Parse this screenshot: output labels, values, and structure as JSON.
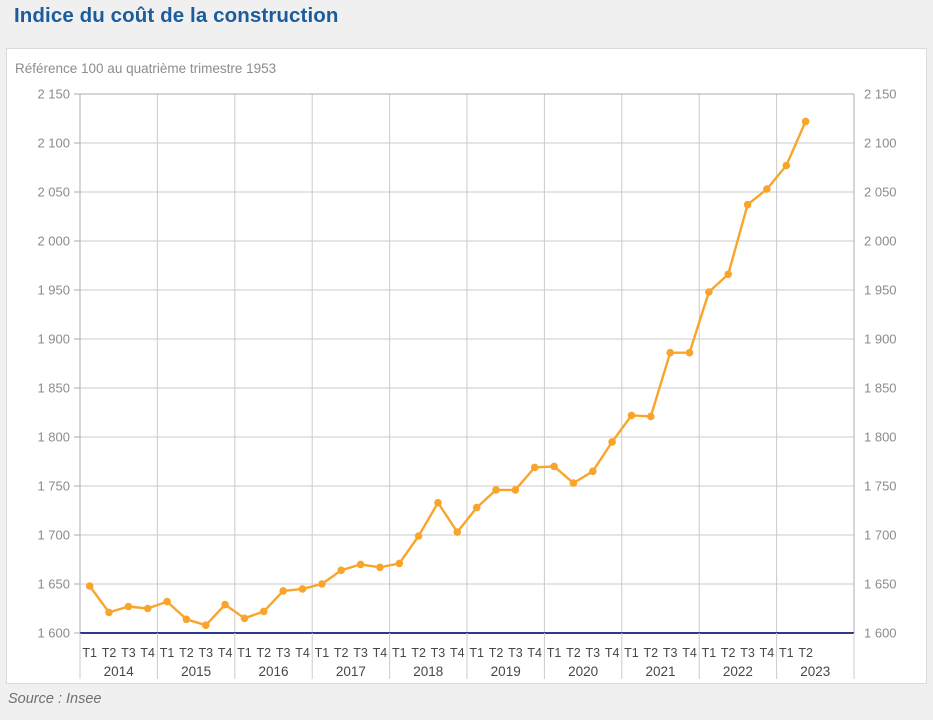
{
  "page": {
    "title": "Indice du coût de la construction",
    "source": "Source : Insee"
  },
  "chart_data": {
    "type": "line",
    "title": "Indice du coût de la construction",
    "subtitle": "Référence 100 au quatrième trimestre 1953",
    "xlabel": "",
    "ylabel": "",
    "ylim": [
      1600,
      2150
    ],
    "ytick_step": 50,
    "y_tick_labels": [
      "1 600",
      "1 650",
      "1 700",
      "1 750",
      "1 800",
      "1 850",
      "1 900",
      "1 950",
      "2 000",
      "2 050",
      "2 100",
      "2 150"
    ],
    "y_axis_sides": [
      "left",
      "right"
    ],
    "grid": true,
    "legend_position": "none",
    "series_name": "Indice du coût de la construction",
    "year_groups": [
      {
        "year": "2014",
        "quarters": [
          "T1",
          "T2",
          "T3",
          "T4"
        ],
        "values": [
          1648,
          1621,
          1627,
          1625
        ]
      },
      {
        "year": "2015",
        "quarters": [
          "T1",
          "T2",
          "T3",
          "T4"
        ],
        "values": [
          1632,
          1614,
          1608,
          1629
        ]
      },
      {
        "year": "2016",
        "quarters": [
          "T1",
          "T2",
          "T3",
          "T4"
        ],
        "values": [
          1615,
          1622,
          1643,
          1645
        ]
      },
      {
        "year": "2017",
        "quarters": [
          "T1",
          "T2",
          "T3",
          "T4"
        ],
        "values": [
          1650,
          1664,
          1670,
          1667
        ]
      },
      {
        "year": "2018",
        "quarters": [
          "T1",
          "T2",
          "T3",
          "T4"
        ],
        "values": [
          1671,
          1699,
          1733,
          1703
        ]
      },
      {
        "year": "2019",
        "quarters": [
          "T1",
          "T2",
          "T3",
          "T4"
        ],
        "values": [
          1728,
          1746,
          1746,
          1769
        ]
      },
      {
        "year": "2020",
        "quarters": [
          "T1",
          "T2",
          "T3",
          "T4"
        ],
        "values": [
          1770,
          1753,
          1765,
          1795
        ]
      },
      {
        "year": "2021",
        "quarters": [
          "T1",
          "T2",
          "T3",
          "T4"
        ],
        "values": [
          1822,
          1821,
          1886,
          1886
        ]
      },
      {
        "year": "2022",
        "quarters": [
          "T1",
          "T2",
          "T3",
          "T4"
        ],
        "values": [
          1948,
          1966,
          2037,
          2053
        ]
      },
      {
        "year": "2023",
        "quarters": [
          "T1",
          "T2"
        ],
        "values": [
          2077,
          2122
        ]
      }
    ],
    "slots_per_year": 4,
    "colors": {
      "line": "#F9A52B",
      "marker": "#F9A52B",
      "baseline": "#2B3990",
      "grid": "#CBCBCB",
      "plot_border": "#ADADAD",
      "y_label_text": "#8B8B8B",
      "x_label_text": "#474747",
      "title": "#1B5C9C",
      "subtitle": "#8C8C8C",
      "source": "#707070",
      "card_background": "#FFFFFF",
      "page_background": "#F0F0F1"
    }
  }
}
